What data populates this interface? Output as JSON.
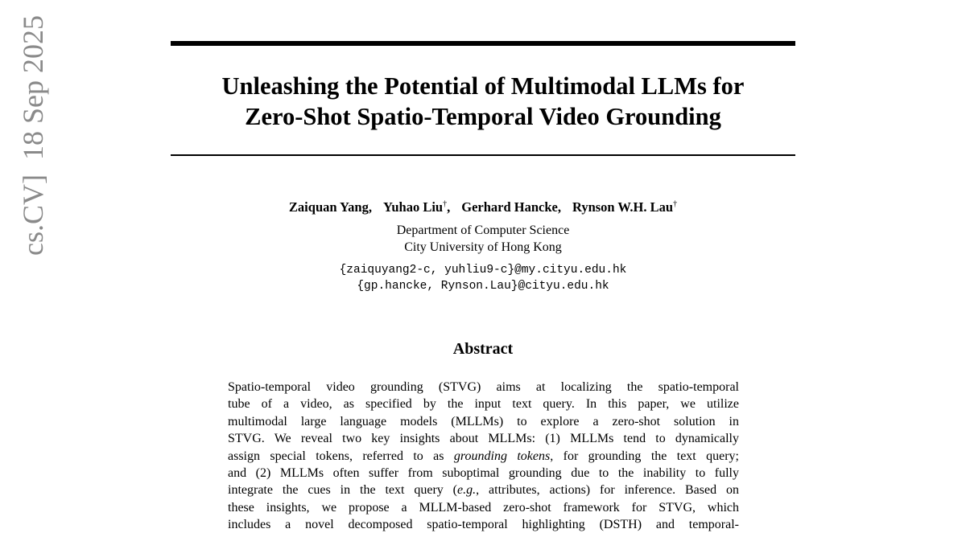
{
  "sidebar": {
    "category": "cs.CV]",
    "date": "18 Sep 2025"
  },
  "header": {
    "title_lines": [
      "Unleashing the Potential of Multimodal LLMs for",
      "Zero-Shot Spatio-Temporal Video Grounding"
    ]
  },
  "authors": [
    {
      "name": "Zaiquan Yang",
      "sep": ","
    },
    {
      "name": "Yuhao Liu",
      "mark": "†",
      "sep": ","
    },
    {
      "name": "Gerhard Hancke",
      "sep": ","
    },
    {
      "name": "Rynson W.H. Lau",
      "mark": "†"
    }
  ],
  "affiliation": [
    "Department of Computer Science",
    "City University of Hong Kong"
  ],
  "emails": [
    "{zaiquyang2-c, yuhliu9-c}@my.cityu.edu.hk",
    "{gp.hancke, Rynson.Lau}@cityu.edu.hk"
  ],
  "abstract": {
    "heading": "Abstract",
    "lines": [
      [
        "Spatio-temporal video grounding (STVG) aims at localizing the spatio-temporal"
      ],
      [
        "tube of a video, as specified by the input text query.  In this paper, we utilize"
      ],
      [
        "multimodal large language models (MLLMs) to explore a zero-shot solution in"
      ],
      [
        "STVG. We reveal two key insights about MLLMs: (1) MLLMs tend to dynamically"
      ],
      [
        "assign special tokens, referred to as ",
        {
          "text": "grounding tokens",
          "italic": true
        },
        ", for grounding the text query;"
      ],
      [
        "and (2) MLLMs often suffer from suboptimal grounding due to the inability to fully"
      ],
      [
        "integrate the cues in the text query (",
        {
          "text": "e.g.",
          "italic": true
        },
        ", attributes, actions) for inference. Based on"
      ],
      [
        "these insights, we propose a MLLM-based zero-shot framework for STVG, which"
      ],
      [
        "includes a novel decomposed spatio-temporal highlighting (DSTH) and temporal-"
      ]
    ]
  }
}
